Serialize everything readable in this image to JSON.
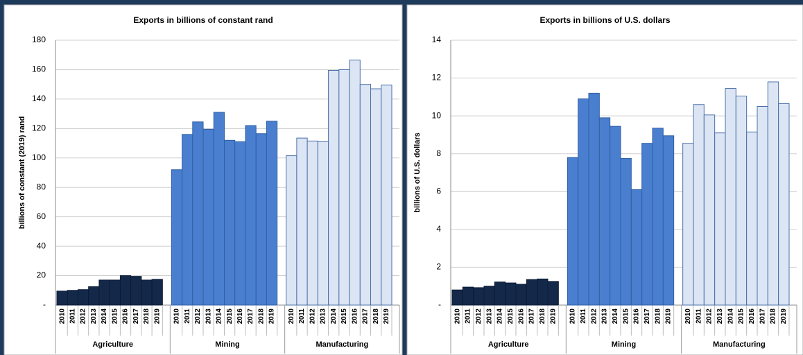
{
  "chart_data": [
    {
      "type": "bar",
      "title": "Exports in billions of constant rand",
      "ylabel": "billions of constant (2019) rand",
      "categories": [
        "2010",
        "2011",
        "2012",
        "2013",
        "2014",
        "2015",
        "2016",
        "2017",
        "2018",
        "2019"
      ],
      "series": [
        {
          "name": "Agriculture",
          "color": "#14294a",
          "edgecolor": "#0a1a33",
          "values": [
            9.5,
            10,
            10.5,
            12.5,
            17,
            17,
            20,
            19.5,
            17,
            17.5
          ]
        },
        {
          "name": "Mining",
          "color": "#4a7fcf",
          "edgecolor": "#2f5fa5",
          "values": [
            92,
            116,
            124.5,
            119.5,
            131,
            112,
            111,
            122,
            116.5,
            125
          ]
        },
        {
          "name": "Manufacturing",
          "color": "#dbe5f4",
          "edgecolor": "#4a6fa8",
          "values": [
            101.5,
            113.5,
            111.5,
            111,
            159.5,
            160,
            166.5,
            150,
            147,
            149.5
          ]
        }
      ],
      "ylim": [
        0,
        180
      ],
      "yticks": [
        {
          "value": 0,
          "label": "-"
        },
        20,
        40,
        60,
        80,
        100,
        120,
        140,
        160,
        180
      ],
      "grid": true
    },
    {
      "type": "bar",
      "title": "Exports in billions of U.S. dollars",
      "ylabel": "billions of U.S. dollars",
      "categories": [
        "2010",
        "2011",
        "2012",
        "2013",
        "2014",
        "2015",
        "2016",
        "2017",
        "2018",
        "2019"
      ],
      "series": [
        {
          "name": "Agriculture",
          "color": "#14294a",
          "edgecolor": "#0a1a33",
          "values": [
            0.8,
            0.95,
            0.92,
            1.0,
            1.22,
            1.17,
            1.1,
            1.35,
            1.38,
            1.25
          ]
        },
        {
          "name": "Mining",
          "color": "#4a7fcf",
          "edgecolor": "#2f5fa5",
          "values": [
            7.8,
            10.9,
            11.2,
            9.9,
            9.45,
            7.75,
            6.1,
            8.55,
            9.35,
            8.95
          ]
        },
        {
          "name": "Manufacturing",
          "color": "#dbe5f4",
          "edgecolor": "#4a6fa8",
          "values": [
            8.55,
            10.6,
            10.05,
            9.1,
            11.45,
            11.05,
            9.15,
            10.5,
            11.8,
            10.65
          ]
        }
      ],
      "ylim": [
        0,
        14
      ],
      "yticks": [
        {
          "value": 0,
          "label": "-"
        },
        2,
        4,
        6,
        8,
        10,
        12,
        14
      ],
      "grid": true
    }
  ]
}
